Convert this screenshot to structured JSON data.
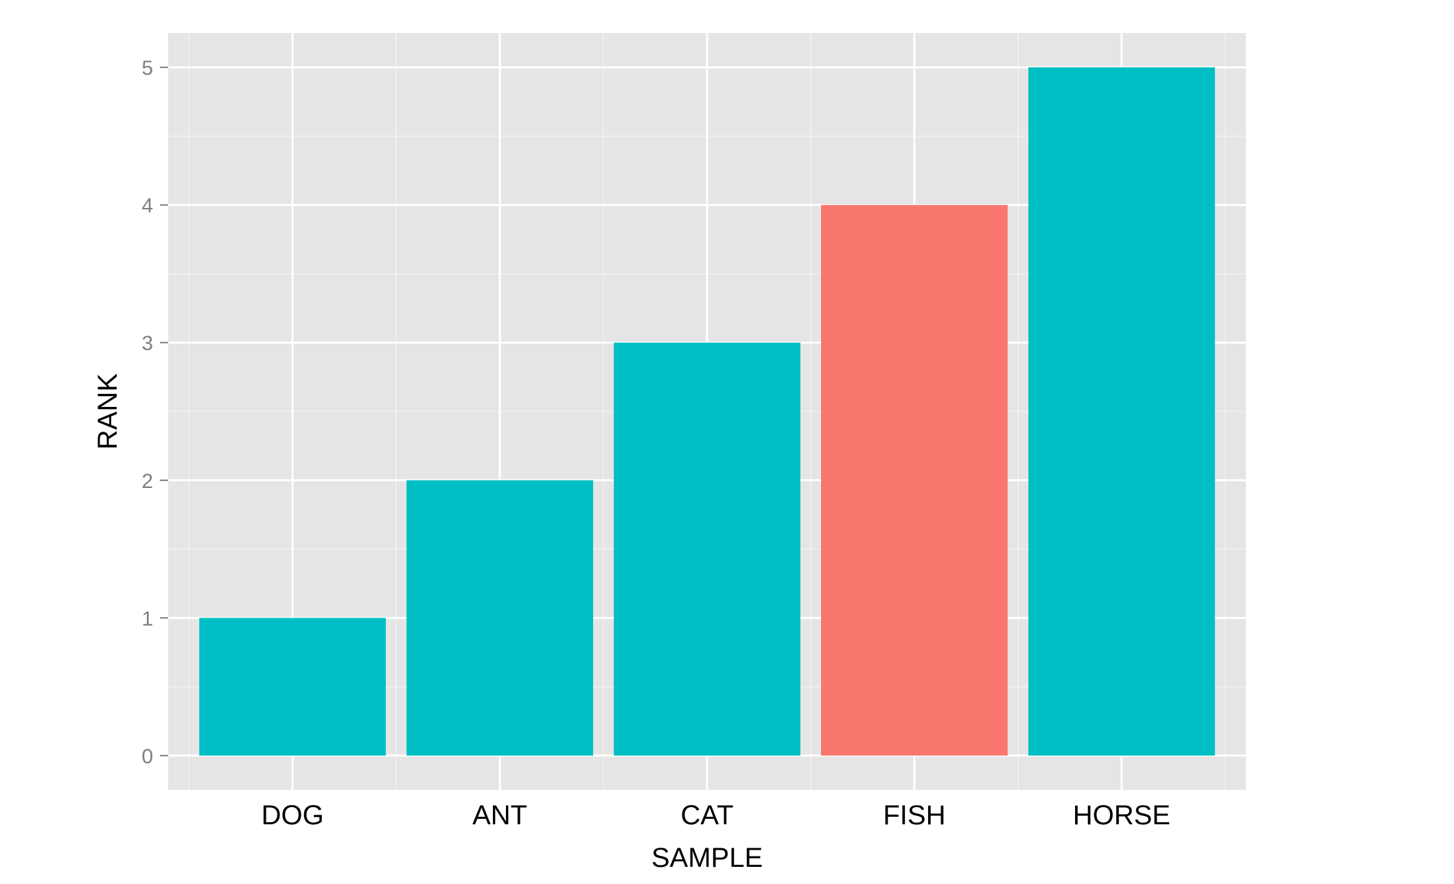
{
  "chart_data": {
    "type": "bar",
    "categories": [
      "DOG",
      "ANT",
      "CAT",
      "FISH",
      "HORSE"
    ],
    "values": [
      1,
      2,
      3,
      4,
      5
    ],
    "bar_colors": [
      "#00BFC4",
      "#00BFC4",
      "#00BFC4",
      "#F8766D",
      "#00BFC4"
    ],
    "title": "",
    "xlabel": "SAMPLE",
    "ylabel": "RANK",
    "ylim": [
      -0.25,
      5.25
    ],
    "yticks": [
      "0",
      "1",
      "2",
      "3",
      "4",
      "5"
    ],
    "grid": true,
    "panel_background": "#E5E5E5",
    "gridline_color": "#FFFFFF"
  }
}
